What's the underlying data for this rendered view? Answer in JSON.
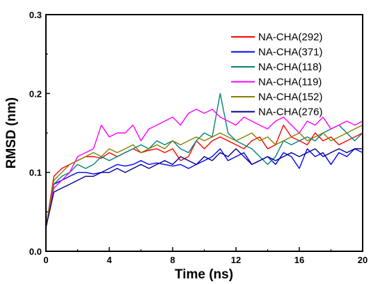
{
  "chart_data": {
    "type": "line",
    "xlabel": "Time (ns)",
    "ylabel": "RMSD (nm)",
    "xlim": [
      0,
      20
    ],
    "ylim": [
      0.0,
      0.3
    ],
    "xticks": [
      0,
      4,
      8,
      12,
      16,
      20
    ],
    "xtick_labels": [
      "0",
      "4",
      "8",
      "12",
      "16",
      "20"
    ],
    "yticks": [
      0.0,
      0.1,
      0.2,
      0.3
    ],
    "ytick_labels": [
      "0.0",
      "0.1",
      "0.2",
      "0.3"
    ],
    "grid": false,
    "legend_position": "top-right",
    "x": [
      0,
      0.5,
      1,
      1.5,
      2,
      2.5,
      3,
      3.5,
      4,
      4.5,
      5,
      5.5,
      6,
      6.5,
      7,
      7.5,
      8,
      8.5,
      9,
      9.5,
      10,
      10.5,
      11,
      11.5,
      12,
      12.5,
      13,
      13.5,
      14,
      14.5,
      15,
      15.5,
      16,
      16.5,
      17,
      17.5,
      18,
      18.5,
      19,
      19.5,
      20
    ],
    "series": [
      {
        "name": "NA-CHA(292)",
        "color": "#ff0000",
        "values": [
          0.03,
          0.095,
          0.105,
          0.11,
          0.115,
          0.12,
          0.12,
          0.118,
          0.125,
          0.12,
          0.125,
          0.13,
          0.125,
          0.128,
          0.13,
          0.125,
          0.13,
          0.115,
          0.12,
          0.14,
          0.13,
          0.14,
          0.145,
          0.14,
          0.135,
          0.13,
          0.14,
          0.145,
          0.13,
          0.135,
          0.16,
          0.145,
          0.14,
          0.135,
          0.15,
          0.14,
          0.145,
          0.135,
          0.14,
          0.145,
          0.15
        ]
      },
      {
        "name": "NA-CHA(371)",
        "color": "#0000ff",
        "values": [
          0.03,
          0.085,
          0.09,
          0.095,
          0.1,
          0.1,
          0.098,
          0.1,
          0.105,
          0.11,
          0.108,
          0.11,
          0.115,
          0.11,
          0.112,
          0.11,
          0.108,
          0.11,
          0.105,
          0.11,
          0.115,
          0.12,
          0.13,
          0.115,
          0.12,
          0.125,
          0.11,
          0.115,
          0.12,
          0.11,
          0.125,
          0.12,
          0.105,
          0.13,
          0.12,
          0.125,
          0.11,
          0.125,
          0.12,
          0.13,
          0.125
        ]
      },
      {
        "name": "NA-CHA(118)",
        "color": "#008080",
        "values": [
          0.03,
          0.085,
          0.095,
          0.1,
          0.11,
          0.105,
          0.11,
          0.12,
          0.115,
          0.12,
          0.125,
          0.13,
          0.135,
          0.13,
          0.14,
          0.135,
          0.14,
          0.13,
          0.125,
          0.14,
          0.15,
          0.145,
          0.2,
          0.15,
          0.14,
          0.135,
          0.13,
          0.12,
          0.11,
          0.12,
          0.14,
          0.135,
          0.14,
          0.145,
          0.14,
          0.15,
          0.155,
          0.16,
          0.15,
          0.14,
          0.15
        ]
      },
      {
        "name": "NA-CHA(119)",
        "color": "#ff00ff",
        "values": [
          0.03,
          0.08,
          0.09,
          0.1,
          0.12,
          0.125,
          0.13,
          0.16,
          0.145,
          0.15,
          0.15,
          0.16,
          0.14,
          0.155,
          0.16,
          0.165,
          0.17,
          0.16,
          0.175,
          0.18,
          0.175,
          0.18,
          0.17,
          0.165,
          0.16,
          0.17,
          0.165,
          0.16,
          0.155,
          0.165,
          0.17,
          0.16,
          0.15,
          0.165,
          0.16,
          0.17,
          0.155,
          0.16,
          0.165,
          0.16,
          0.165
        ]
      },
      {
        "name": "NA-CHA(152)",
        "color": "#808000",
        "values": [
          0.03,
          0.09,
          0.1,
          0.11,
          0.115,
          0.12,
          0.125,
          0.12,
          0.13,
          0.125,
          0.13,
          0.135,
          0.125,
          0.13,
          0.135,
          0.13,
          0.14,
          0.135,
          0.14,
          0.145,
          0.14,
          0.145,
          0.15,
          0.145,
          0.14,
          0.145,
          0.15,
          0.14,
          0.145,
          0.135,
          0.14,
          0.145,
          0.15,
          0.14,
          0.145,
          0.15,
          0.14,
          0.145,
          0.15,
          0.155,
          0.16
        ]
      },
      {
        "name": "NA-CHA(276)",
        "color": "#00008b",
        "values": [
          0.03,
          0.075,
          0.08,
          0.085,
          0.09,
          0.095,
          0.095,
          0.1,
          0.1,
          0.105,
          0.1,
          0.105,
          0.11,
          0.105,
          0.11,
          0.115,
          0.11,
          0.12,
          0.115,
          0.11,
          0.12,
          0.115,
          0.125,
          0.12,
          0.13,
          0.12,
          0.11,
          0.115,
          0.12,
          0.115,
          0.12,
          0.125,
          0.12,
          0.125,
          0.13,
          0.12,
          0.125,
          0.13,
          0.125,
          0.13,
          0.13
        ]
      }
    ]
  }
}
